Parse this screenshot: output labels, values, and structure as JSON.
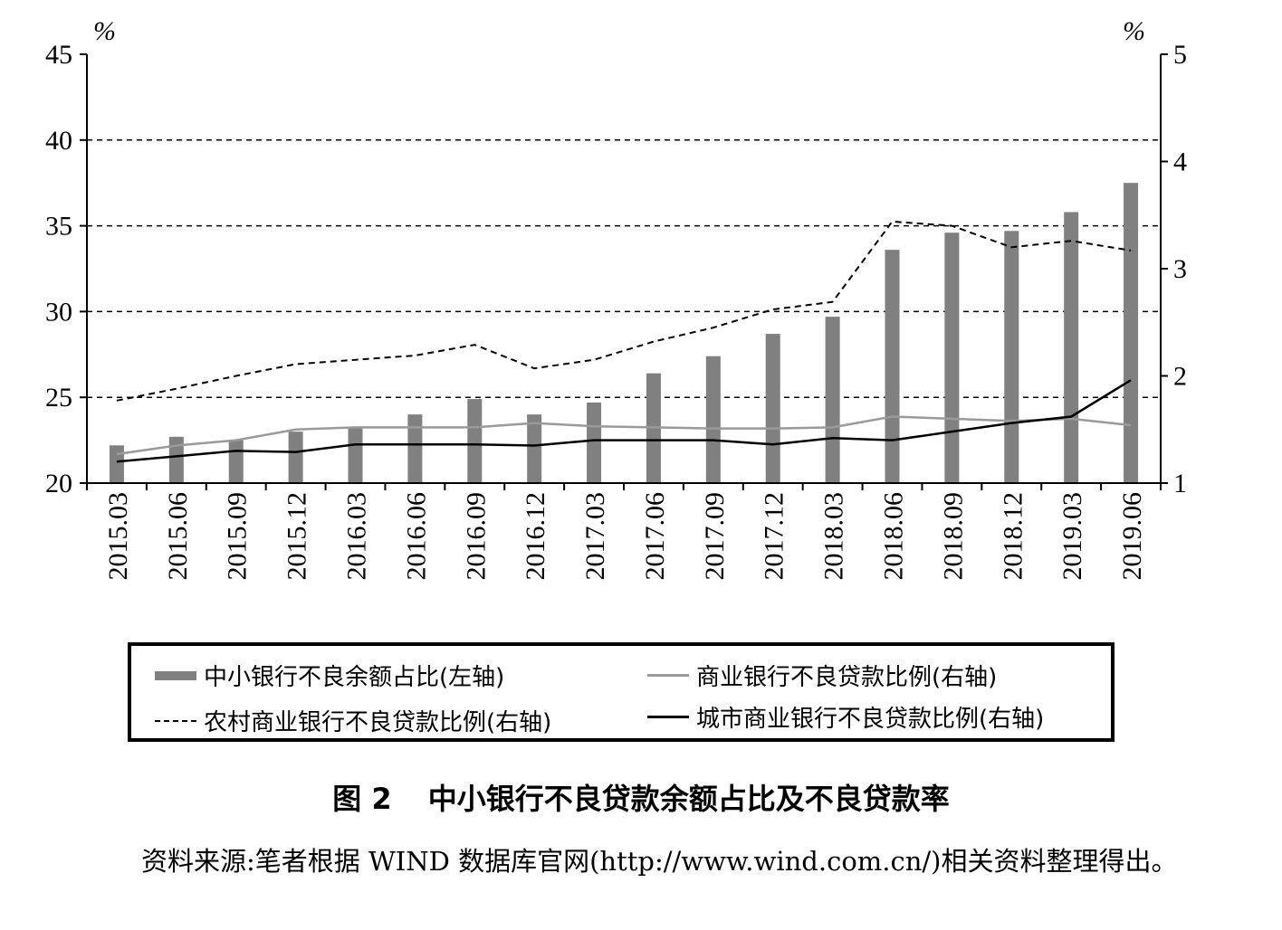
{
  "chart_data": {
    "type": "bar",
    "categories": [
      "2015.03",
      "2015.06",
      "2015.09",
      "2015.12",
      "2016.03",
      "2016.06",
      "2016.09",
      "2016.12",
      "2017.03",
      "2017.06",
      "2017.09",
      "2017.12",
      "2018.03",
      "2018.06",
      "2018.09",
      "2018.12",
      "2019.03",
      "2019.06"
    ],
    "left_axis": {
      "unit": "%",
      "ylim": [
        20,
        45
      ],
      "ticks": [
        "20",
        "25",
        "30",
        "35",
        "40",
        "45"
      ]
    },
    "right_axis": {
      "unit": "%",
      "ylim": [
        1,
        5
      ],
      "ticks": [
        "1",
        "2",
        "3",
        "4",
        "5"
      ]
    },
    "grid": "dashed horizontal at left-axis ticks",
    "series": [
      {
        "name": "中小银行不良余额占比(左轴)",
        "kind": "bar",
        "axis": "left",
        "color": "#808080",
        "values": [
          22.2,
          22.7,
          22.5,
          23.0,
          23.2,
          24.0,
          24.9,
          24.0,
          24.7,
          26.4,
          27.4,
          28.7,
          29.7,
          33.6,
          34.6,
          34.7,
          35.8,
          37.5
        ]
      },
      {
        "name": "商业银行不良贷款比例(右轴)",
        "kind": "line",
        "axis": "right",
        "color": "#9a9a9a",
        "style": "solid",
        "values": [
          1.27,
          1.35,
          1.4,
          1.5,
          1.52,
          1.52,
          1.52,
          1.56,
          1.53,
          1.52,
          1.51,
          1.51,
          1.52,
          1.62,
          1.6,
          1.58,
          1.6,
          1.54
        ]
      },
      {
        "name": "农村商业银行不良贷款比例(右轴)",
        "kind": "line",
        "axis": "right",
        "color": "#000000",
        "style": "dashed",
        "values": [
          1.77,
          1.88,
          2.0,
          2.11,
          2.15,
          2.19,
          2.29,
          2.07,
          2.15,
          2.32,
          2.45,
          2.62,
          2.69,
          3.44,
          3.4,
          3.2,
          3.26,
          3.17
        ]
      },
      {
        "name": "城市商业银行不良贷款比例(右轴)",
        "kind": "line",
        "axis": "right",
        "color": "#000000",
        "style": "solid",
        "values": [
          1.2,
          1.25,
          1.3,
          1.29,
          1.36,
          1.36,
          1.36,
          1.35,
          1.4,
          1.4,
          1.4,
          1.36,
          1.42,
          1.4,
          1.48,
          1.56,
          1.62,
          1.96
        ]
      }
    ]
  },
  "legend": {
    "items": [
      "中小银行不良余额占比(左轴)",
      "商业银行不良贷款比例(右轴)",
      "农村商业银行不良贷款比例(右轴)",
      "城市商业银行不良贷款比例(右轴)"
    ]
  },
  "caption": {
    "number": "图 2",
    "title": "中小银行不良贷款余额占比及不良贷款率"
  },
  "source": "资料来源:笔者根据 WIND 数据库官网(http://www.wind.com.cn/)相关资料整理得出。"
}
